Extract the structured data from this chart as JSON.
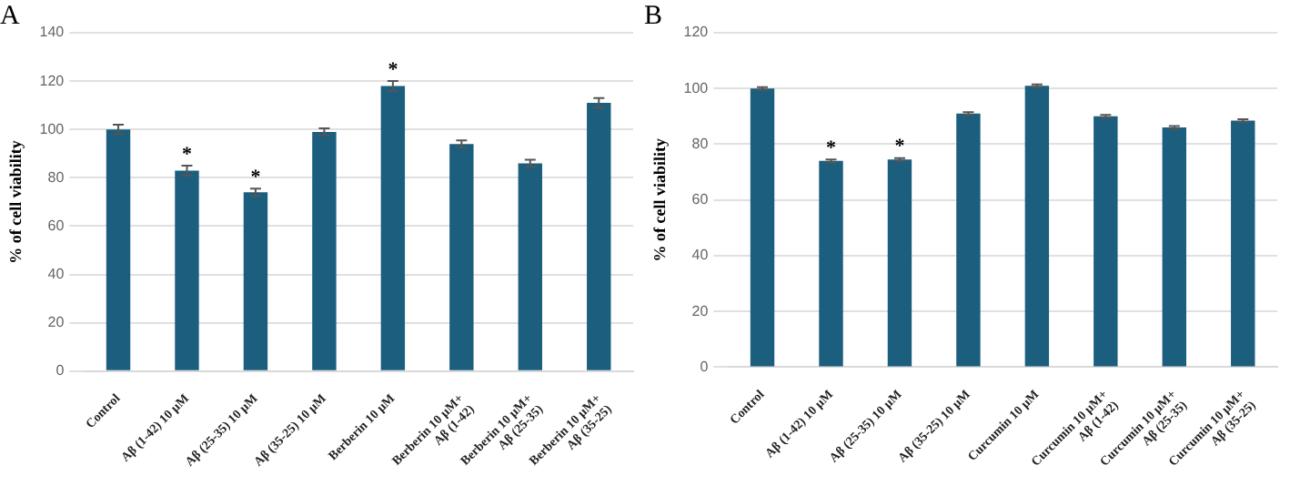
{
  "chart_data": [
    {
      "type": "bar",
      "title": "A",
      "ylabel": "% of cell viability",
      "categories": [
        "Control",
        "Aβ (1-42) 10 µM",
        "Aβ (25-35) 10 µM",
        "Aβ (35-25) 10 µM",
        "Berberin 10 µM",
        "Berberin 10 µM+\nAβ (1-42)",
        "Berberin 10 µM+\nAβ (25-35)",
        "Berberin 10 µM+\nAβ (35-25)"
      ],
      "values": [
        100,
        83,
        74,
        99,
        118,
        94,
        86,
        111
      ],
      "errors": [
        2,
        2,
        1.5,
        1.5,
        2,
        1.5,
        1.5,
        2
      ],
      "color": "#1b5e7e",
      "ylim": [
        0,
        140
      ],
      "yticks": [
        0,
        20,
        40,
        60,
        80,
        100,
        120,
        140
      ],
      "grid": "y",
      "annotations": [
        {
          "text": "*",
          "x": "Aβ (1-42) 10 µM",
          "y": 83
        },
        {
          "text": "*",
          "x": "Aβ (25-35) 10 µM",
          "y": 74
        },
        {
          "text": "*",
          "x": "Berberin 10 µM",
          "y": 118
        }
      ]
    },
    {
      "type": "bar",
      "title": "B",
      "ylabel": "% of cell viability",
      "categories": [
        "Control",
        "Aβ (1-42) 10 µM",
        "Aβ (25-35) 10 µM",
        "Aβ (35-25) 10 µM",
        "Curcumin 10 µM",
        "Curcumin 10 µM+\nAβ (1-42)",
        "Curcumin 10 µM+\nAβ (25-35)",
        "Curcumin 10 µM+\nAβ (35-25)"
      ],
      "values": [
        100,
        74,
        74.5,
        91,
        101,
        90,
        86,
        88.5
      ],
      "errors": [
        0.5,
        0.5,
        0.5,
        0.5,
        0.5,
        0.5,
        0.5,
        0.5
      ],
      "color": "#1b5e7e",
      "ylim": [
        0,
        120
      ],
      "yticks": [
        0,
        20,
        40,
        60,
        80,
        100,
        120
      ],
      "grid": "y",
      "annotations": [
        {
          "text": "*",
          "x": "Aβ (1-42) 10 µM",
          "y": 74
        },
        {
          "text": "*",
          "x": "Aβ (25-35) 10 µM",
          "y": 74.5
        }
      ]
    }
  ]
}
